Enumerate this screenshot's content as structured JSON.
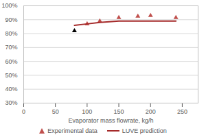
{
  "chart_data": {
    "type": "line",
    "x_label": "Evaporator mass flowrate, kg/h",
    "xlim": [
      0,
      275
    ],
    "xticks": [
      0,
      50,
      100,
      150,
      200,
      250
    ],
    "ylim": [
      30,
      100
    ],
    "yticks": [
      {
        "value": 30,
        "label": "30%"
      },
      {
        "value": 40,
        "label": "40%"
      },
      {
        "value": 50,
        "label": "50%"
      },
      {
        "value": 60,
        "label": "60%"
      },
      {
        "value": 70,
        "label": "70%"
      },
      {
        "value": 80,
        "label": "80%"
      },
      {
        "value": 90,
        "label": "90%"
      },
      {
        "value": 100,
        "label": "100%"
      }
    ],
    "grid": true,
    "legend": "bottom",
    "series": [
      {
        "name": "Experimental data",
        "type": "scatter",
        "marker": "triangle",
        "color": "#c0504d",
        "colors": [
          "#000000",
          "#c0504d",
          "#c0504d",
          "#c0504d",
          "#c0504d",
          "#c0504d",
          "#c0504d"
        ],
        "x": [
          80,
          100,
          120,
          150,
          180,
          200,
          240
        ],
        "values": [
          82,
          87,
          89,
          91.5,
          92.5,
          93,
          91.5
        ]
      },
      {
        "name": "LUVE prediction",
        "type": "line",
        "line_style": "solid",
        "color": "#a52a2a",
        "x": [
          80,
          100,
          120,
          150,
          200,
          240
        ],
        "values": [
          86,
          87,
          88,
          89,
          89,
          89
        ]
      }
    ]
  }
}
